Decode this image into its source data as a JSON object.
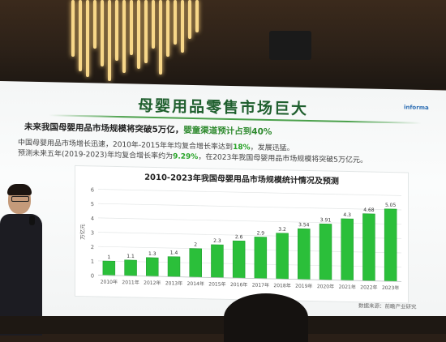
{
  "slide": {
    "title": "母婴用品零售市场巨大",
    "brand": "informa",
    "headline_prefix": "未来我国母婴用品市场规模将突破5万亿，",
    "headline_suffix": "婴童渠道预计占到40%",
    "desc1_a": "中国母婴用品市场增长迅速，2010年-2015年年均复合增长率达到",
    "desc1_pct": "18%",
    "desc1_b": "，发展迅猛。",
    "desc2_a": "预测未来五年(2019-2023)年均复合增长率约为",
    "desc2_pct": "9.29%",
    "desc2_b": "，在2023年我国母婴用品市场规模将突破5万亿元。",
    "source": "数据来源：前瞻产业研究"
  },
  "colors": {
    "title": "#1f5f2e",
    "bar": "#2bbf3a",
    "bar_dark": "#1a9a2a",
    "accent": "#27a327"
  },
  "chart_data": {
    "type": "bar",
    "title": "2010-2023年我国母婴用品市场规模统计情况及预测",
    "ylabel": "万亿元",
    "xlabel": "",
    "categories": [
      "2010年",
      "2011年",
      "2012年",
      "2013年",
      "2014年",
      "2015年",
      "2016年",
      "2017年",
      "2018年",
      "2019年",
      "2020年",
      "2021年",
      "2022年",
      "2023年"
    ],
    "values": [
      1,
      1.1,
      1.3,
      1.4,
      2,
      2.3,
      2.6,
      2.9,
      3.2,
      3.54,
      3.91,
      4.3,
      4.68,
      5.05
    ],
    "value_labels": [
      "1",
      "1.1",
      "1.3",
      "1.4",
      "2",
      "2.3",
      "2.6",
      "2.9",
      "3.2",
      "3.54",
      "3.91",
      "4.3",
      "4.68",
      "5.05"
    ],
    "ylim": [
      0,
      6
    ],
    "yticks": [
      "0",
      "1",
      "2",
      "3",
      "4",
      "5",
      "6"
    ],
    "grid": true,
    "legend": "none"
  }
}
